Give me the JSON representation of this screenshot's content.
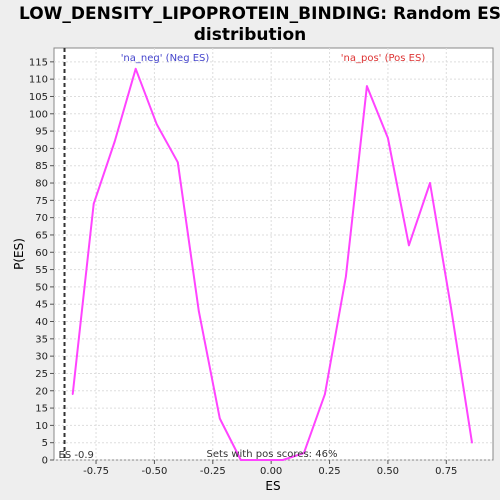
{
  "chart_data": {
    "type": "line",
    "title_line1": "LOW_DENSITY_LIPOPROTEIN_BINDING: Random ES",
    "title_line2": "distribution",
    "xlabel": "ES",
    "ylabel": "P(ES)",
    "xlim": [
      -0.93,
      0.95
    ],
    "ylim": [
      0,
      119
    ],
    "x_ticks": [
      {
        "value": -0.75,
        "label": "-0.75"
      },
      {
        "value": -0.5,
        "label": "-0.50"
      },
      {
        "value": -0.25,
        "label": "-0.25"
      },
      {
        "value": 0.0,
        "label": "0.00"
      },
      {
        "value": 0.25,
        "label": "0.25"
      },
      {
        "value": 0.5,
        "label": "0.50"
      },
      {
        "value": 0.75,
        "label": "0.75"
      }
    ],
    "y_ticks": [
      0,
      5,
      10,
      15,
      20,
      25,
      30,
      35,
      40,
      45,
      50,
      55,
      60,
      65,
      70,
      75,
      80,
      85,
      90,
      95,
      100,
      105,
      110,
      115
    ],
    "grid": true,
    "series": [
      {
        "color": "#ff44ff",
        "x": [
          -0.85,
          -0.76,
          -0.67,
          -0.58,
          -0.49,
          -0.4,
          -0.31,
          -0.22,
          -0.13,
          -0.04,
          0.05,
          0.14,
          0.23,
          0.32,
          0.41,
          0.5,
          0.59,
          0.68,
          0.77,
          0.86
        ],
        "y": [
          19,
          74,
          92,
          113,
          97,
          86,
          43,
          12,
          0,
          0,
          0,
          2,
          19,
          53,
          108,
          93,
          62,
          80,
          44,
          5
        ]
      }
    ],
    "observed_es": {
      "value": -0.885,
      "label": "ES -0.9",
      "color": "#333333"
    },
    "annotations": {
      "neg": {
        "text": "'na_neg' (Neg ES)",
        "color": "#4444cc"
      },
      "pos": {
        "text": "'na_pos' (Pos ES)",
        "color": "#dd3333"
      },
      "footer": {
        "text": "Sets with pos scores: 46%",
        "color": "#333333"
      }
    }
  }
}
